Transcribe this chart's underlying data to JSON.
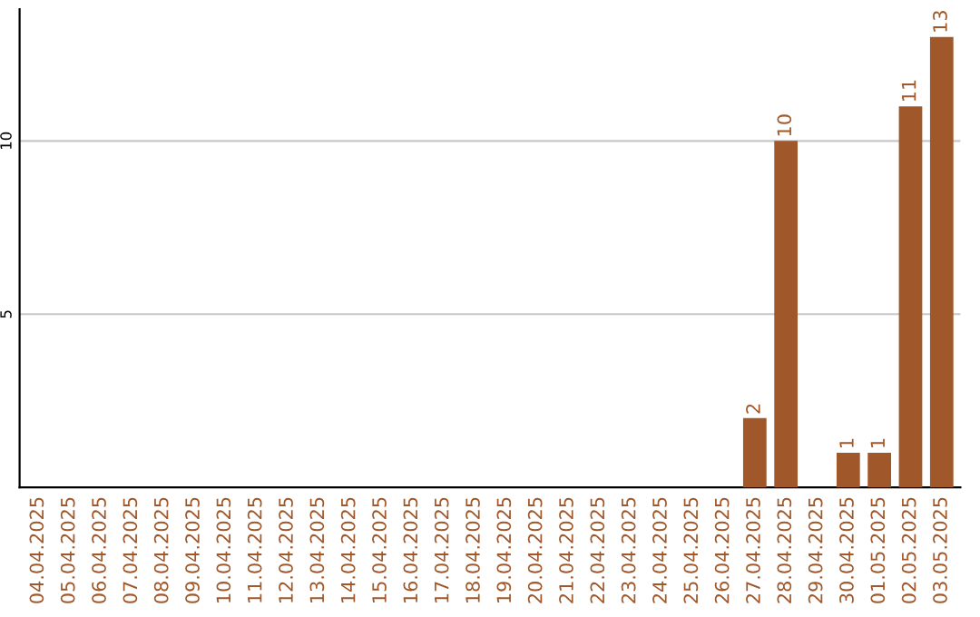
{
  "chart_data": {
    "type": "bar",
    "categories": [
      "04.04.2025",
      "05.04.2025",
      "06.04.2025",
      "07.04.2025",
      "08.04.2025",
      "09.04.2025",
      "10.04.2025",
      "11.04.2025",
      "12.04.2025",
      "13.04.2025",
      "14.04.2025",
      "15.04.2025",
      "16.04.2025",
      "17.04.2025",
      "18.04.2025",
      "19.04.2025",
      "20.04.2025",
      "21.04.2025",
      "22.04.2025",
      "23.04.2025",
      "24.04.2025",
      "25.04.2025",
      "26.04.2025",
      "27.04.2025",
      "28.04.2025",
      "29.04.2025",
      "30.04.2025",
      "01.05.2025",
      "02.05.2025",
      "03.05.2025"
    ],
    "values": [
      0,
      0,
      0,
      0,
      0,
      0,
      0,
      0,
      0,
      0,
      0,
      0,
      0,
      0,
      0,
      0,
      0,
      0,
      0,
      0,
      0,
      0,
      0,
      2,
      10,
      0,
      1,
      1,
      11,
      13
    ],
    "value_labels": [
      null,
      null,
      null,
      null,
      null,
      null,
      null,
      null,
      null,
      null,
      null,
      null,
      null,
      null,
      null,
      null,
      null,
      null,
      null,
      null,
      null,
      null,
      null,
      "2",
      "10",
      null,
      "1",
      "1",
      "11",
      "13"
    ],
    "color": "#a0582a",
    "ylim": [
      0,
      13.8
    ],
    "yticks": [
      5,
      10
    ],
    "grid": "y"
  }
}
